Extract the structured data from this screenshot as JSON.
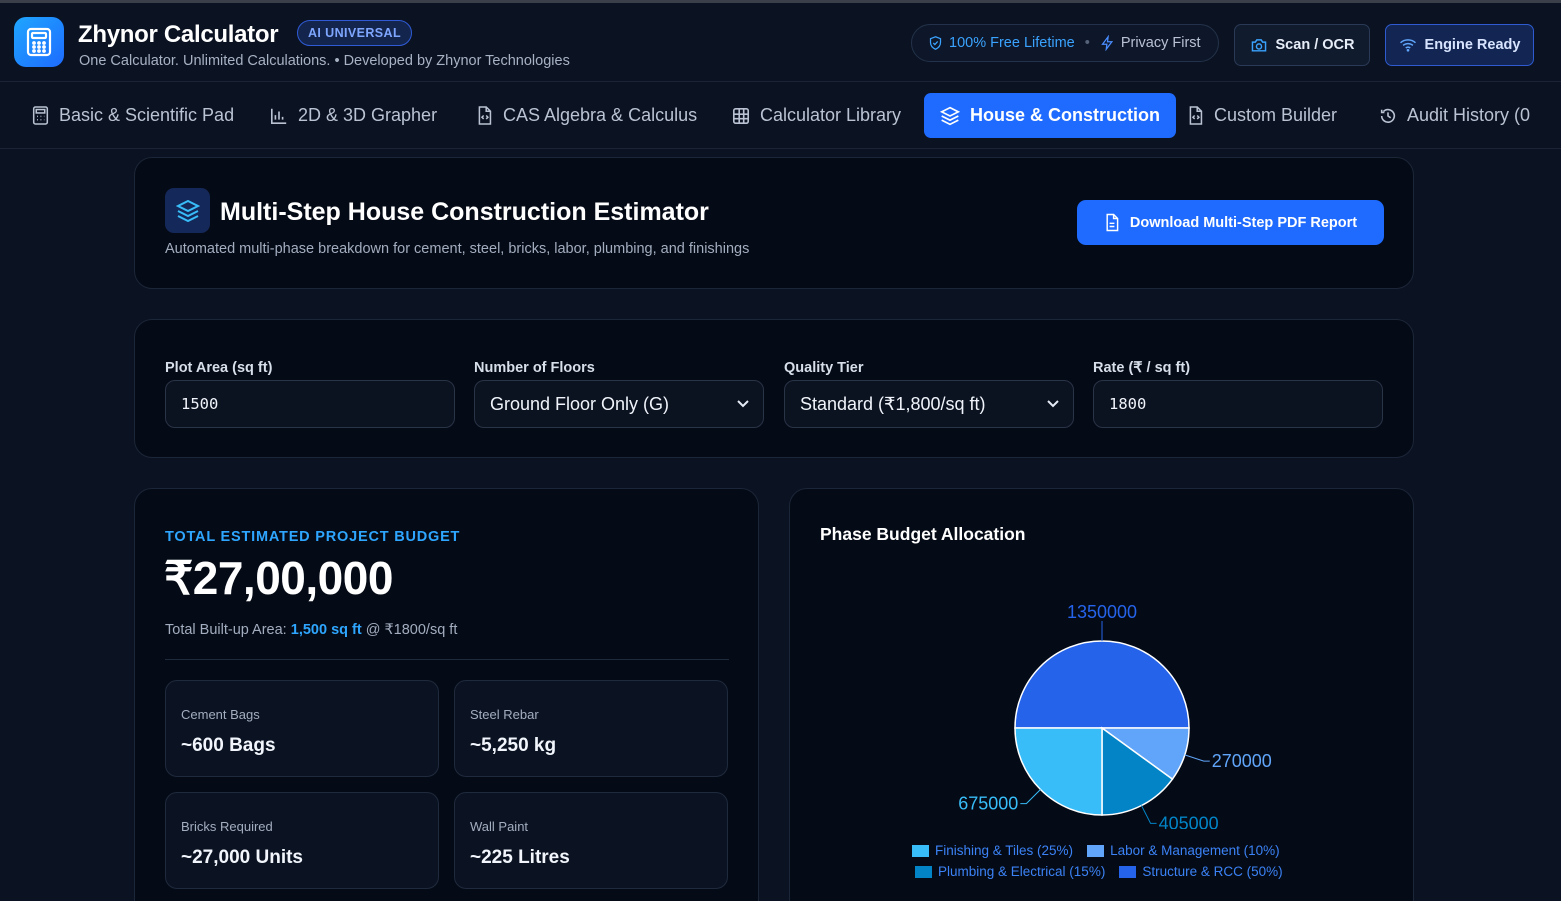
{
  "header": {
    "app_title": "Zhynor Calculator",
    "badge": "AI UNIVERSAL",
    "subtitle": "One Calculator. Unlimited Calculations. • Developed by Zhynor Technologies",
    "pill_free": "100% Free Lifetime",
    "pill_separator": "•",
    "pill_privacy": "Privacy First",
    "scan_label": "Scan / OCR",
    "engine_label": "Engine Ready"
  },
  "tabs": [
    {
      "label": "Basic & Scientific Pad",
      "icon": "calculator-icon"
    },
    {
      "label": "2D & 3D Grapher",
      "icon": "bar-chart-icon"
    },
    {
      "label": "CAS Algebra & Calculus",
      "icon": "file-code-icon"
    },
    {
      "label": "Calculator Library",
      "icon": "grid-icon"
    },
    {
      "label": "House & Construction",
      "icon": "layers-icon",
      "active": true
    },
    {
      "label": "Custom Builder",
      "icon": "file-code-icon"
    },
    {
      "label": "Audit History (0",
      "icon": "history-icon"
    }
  ],
  "estimator": {
    "title": "Multi-Step House Construction Estimator",
    "subtitle": "Automated multi-phase breakdown for cement, steel, bricks, labor, plumbing, and finishings",
    "download_label": "Download Multi-Step PDF Report"
  },
  "inputs": {
    "plot_area": {
      "label": "Plot Area (sq ft)",
      "value": "1500"
    },
    "floors": {
      "label": "Number of Floors",
      "value": "Ground Floor Only (G)"
    },
    "quality": {
      "label": "Quality Tier",
      "value": "Standard (₹1,800/sq ft)"
    },
    "rate": {
      "label": "Rate (₹ / sq ft)",
      "value": "1800"
    }
  },
  "budget": {
    "label": "TOTAL ESTIMATED PROJECT BUDGET",
    "total": "₹27,00,000",
    "area_prefix": "Total Built-up Area: ",
    "area_value": "1,500 sq ft",
    "area_suffix": " @ ₹1800/sq ft",
    "stats": [
      {
        "label": "Cement Bags",
        "value": "~600 Bags"
      },
      {
        "label": "Steel Rebar",
        "value": "~5,250 kg"
      },
      {
        "label": "Bricks Required",
        "value": "~27,000 Units"
      },
      {
        "label": "Wall Paint",
        "value": "~225 Litres"
      }
    ]
  },
  "colors": {
    "accent": "#1f6bff",
    "structure": "#2563eb",
    "finishing": "#38bdf8",
    "plumbing": "#0284c7",
    "labor": "#60a5fa"
  },
  "chart_data": {
    "type": "pie",
    "title": "Phase Budget Allocation",
    "slices": [
      {
        "name": "Structure & RCC (50%)",
        "value": 1350000,
        "label": "1350000",
        "color": "#2563eb"
      },
      {
        "name": "Labor & Management (10%)",
        "value": 270000,
        "label": "270000",
        "color": "#60a5fa"
      },
      {
        "name": "Plumbing & Electrical (15%)",
        "value": 405000,
        "label": "405000",
        "color": "#0284c7"
      },
      {
        "name": "Finishing & Tiles (25%)",
        "value": 675000,
        "label": "675000",
        "color": "#38bdf8"
      }
    ],
    "legend": [
      [
        "Finishing & Tiles (25%)",
        "Labor & Management (10%)"
      ],
      [
        "Plumbing & Electrical (15%)",
        "Structure & RCC (50%)"
      ]
    ],
    "legend_position": "bottom"
  }
}
